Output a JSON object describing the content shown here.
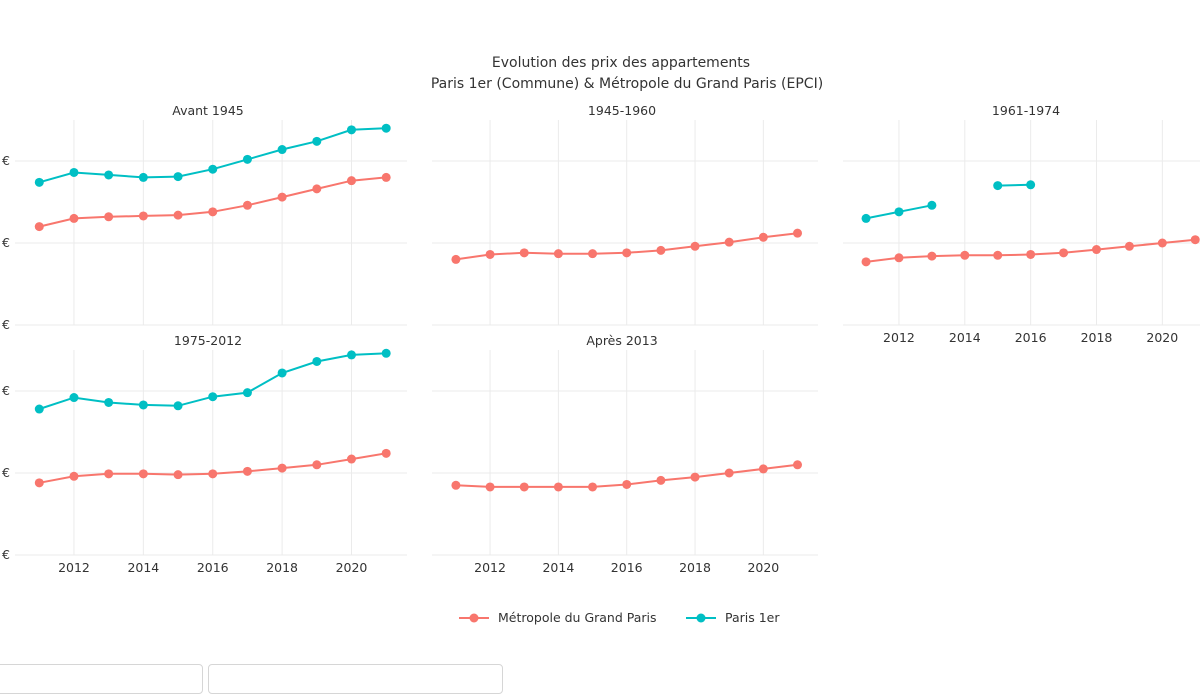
{
  "chart_data": {
    "type": "line",
    "title": "Evolution des prix des appartements",
    "subtitle": "Paris 1er (Commune) & Métropole du Grand Paris (EPCI)",
    "x_ticks": [
      2012,
      2014,
      2016,
      2018,
      2020
    ],
    "y_tick_label": "€",
    "legend": {
      "placement": "bottom-center",
      "items": [
        {
          "name": "Métropole du Grand Paris",
          "color": "#F8766D"
        },
        {
          "name": "Paris 1er",
          "color": "#00BFC4"
        }
      ]
    },
    "grid": true,
    "y_range": [
      0,
      1.25
    ],
    "facets": [
      {
        "title": "Avant 1945",
        "series": [
          {
            "name": "Métropole du Grand Paris",
            "color": "#F8766D",
            "x": [
              2011,
              2012,
              2013,
              2014,
              2015,
              2016,
              2017,
              2018,
              2019,
              2020,
              2021
            ],
            "y": [
              0.6,
              0.65,
              0.66,
              0.665,
              0.67,
              0.69,
              0.73,
              0.78,
              0.83,
              0.88,
              0.9
            ]
          },
          {
            "name": "Paris 1er",
            "color": "#00BFC4",
            "x": [
              2011,
              2012,
              2013,
              2014,
              2015,
              2016,
              2017,
              2018,
              2019,
              2020,
              2021
            ],
            "y": [
              0.87,
              0.93,
              0.915,
              0.9,
              0.905,
              0.95,
              1.01,
              1.07,
              1.12,
              1.19,
              1.2
            ]
          }
        ]
      },
      {
        "title": "1945-1960",
        "series": [
          {
            "name": "Métropole du Grand Paris",
            "color": "#F8766D",
            "x": [
              2011,
              2012,
              2013,
              2014,
              2015,
              2016,
              2017,
              2018,
              2019,
              2020,
              2021
            ],
            "y": [
              0.4,
              0.43,
              0.44,
              0.435,
              0.435,
              0.44,
              0.455,
              0.48,
              0.505,
              0.535,
              0.56
            ]
          }
        ]
      },
      {
        "title": "1961-1974",
        "series": [
          {
            "name": "Métropole du Grand Paris",
            "color": "#F8766D",
            "x": [
              2011,
              2012,
              2013,
              2014,
              2015,
              2016,
              2017,
              2018,
              2019,
              2020,
              2021
            ],
            "y": [
              0.385,
              0.41,
              0.42,
              0.425,
              0.425,
              0.43,
              0.44,
              0.46,
              0.48,
              0.5,
              0.52
            ]
          },
          {
            "name": "Paris 1er",
            "color": "#00BFC4",
            "x": [
              2011,
              2012,
              2013,
              2015,
              2016
            ],
            "y": [
              0.65,
              0.69,
              0.73,
              0.85,
              0.855
            ],
            "breaks_after": [
              2013
            ]
          }
        ]
      },
      {
        "title": "1975-2012",
        "series": [
          {
            "name": "Métropole du Grand Paris",
            "color": "#F8766D",
            "x": [
              2011,
              2012,
              2013,
              2014,
              2015,
              2016,
              2017,
              2018,
              2019,
              2020,
              2021
            ],
            "y": [
              0.44,
              0.48,
              0.495,
              0.495,
              0.49,
              0.495,
              0.51,
              0.53,
              0.55,
              0.585,
              0.62
            ]
          },
          {
            "name": "Paris 1er",
            "color": "#00BFC4",
            "x": [
              2011,
              2012,
              2013,
              2014,
              2015,
              2016,
              2017,
              2018,
              2019,
              2020,
              2021
            ],
            "y": [
              0.89,
              0.96,
              0.93,
              0.915,
              0.91,
              0.965,
              0.99,
              1.11,
              1.18,
              1.22,
              1.23
            ]
          }
        ]
      },
      {
        "title": "Après 2013",
        "series": [
          {
            "name": "Métropole du Grand Paris",
            "color": "#F8766D",
            "x": [
              2011,
              2012,
              2013,
              2014,
              2015,
              2016,
              2017,
              2018,
              2019,
              2020,
              2021
            ],
            "y": [
              0.425,
              0.415,
              0.415,
              0.415,
              0.415,
              0.43,
              0.455,
              0.475,
              0.5,
              0.525,
              0.55
            ]
          }
        ]
      }
    ]
  }
}
